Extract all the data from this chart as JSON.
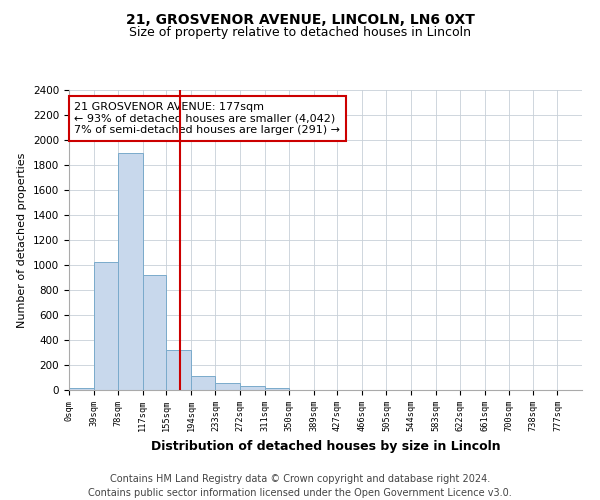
{
  "title_line1": "21, GROSVENOR AVENUE, LINCOLN, LN6 0XT",
  "title_line2": "Size of property relative to detached houses in Lincoln",
  "xlabel": "Distribution of detached houses by size in Lincoln",
  "ylabel": "Number of detached properties",
  "footnote": "Contains HM Land Registry data © Crown copyright and database right 2024.\nContains public sector information licensed under the Open Government Licence v3.0.",
  "bin_edges": [
    0,
    39,
    78,
    117,
    155,
    194,
    233,
    272,
    311,
    350,
    389,
    427,
    466,
    505,
    544,
    583,
    622,
    661,
    700,
    738,
    777
  ],
  "bar_heights": [
    20,
    1025,
    1900,
    920,
    320,
    110,
    55,
    30,
    20,
    0,
    0,
    0,
    0,
    0,
    0,
    0,
    0,
    0,
    0,
    0
  ],
  "bar_color": "#c8d8ec",
  "bar_edge_color": "#7aaacb",
  "property_size": 177,
  "vline_color": "#cc0000",
  "annotation_text": "21 GROSVENOR AVENUE: 177sqm\n← 93% of detached houses are smaller (4,042)\n7% of semi-detached houses are larger (291) →",
  "annotation_box_color": "white",
  "annotation_box_edge_color": "#cc0000",
  "ylim": [
    0,
    2400
  ],
  "yticks": [
    0,
    200,
    400,
    600,
    800,
    1000,
    1200,
    1400,
    1600,
    1800,
    2000,
    2200,
    2400
  ],
  "background_color": "white",
  "plot_background_color": "white",
  "grid_color": "#c8d0d8",
  "title1_fontsize": 10,
  "title2_fontsize": 9,
  "annotation_fontsize": 8,
  "footnote_fontsize": 7,
  "ylabel_fontsize": 8,
  "xlabel_fontsize": 9
}
